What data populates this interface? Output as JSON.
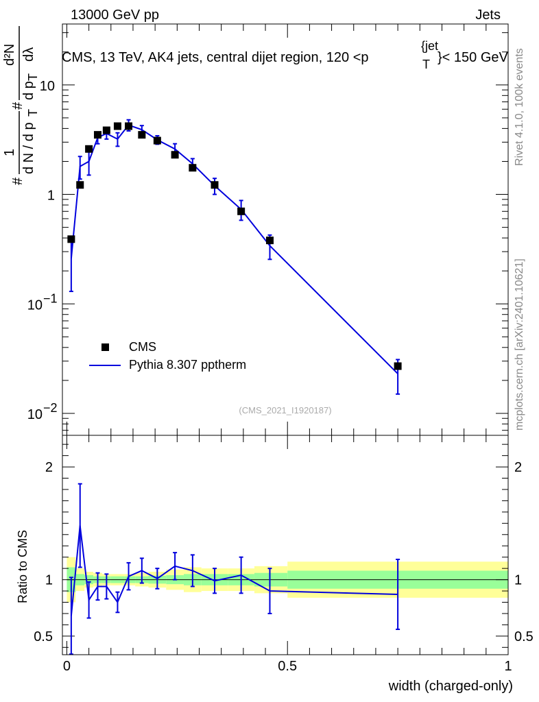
{
  "header": {
    "left": "13000 GeV pp",
    "right": "Jets",
    "title_prefix": "CMS, 13 TeV, AK4 jets, central dijet region, 120 <p",
    "title_sup": "{jet",
    "title_sub": "T",
    "title_suffix": "}< 150 GeV"
  },
  "side_labels": {
    "rivet": "Rivet 4.1.0,  100k events",
    "mcplots": "mcplots.cern.ch [arXiv:2401.10621]"
  },
  "analysis_ref": "(CMS_2021_I1920187)",
  "ylabel_top": {
    "hash1": "#",
    "one": "1",
    "dN_dpT": "d N / d p",
    "T": "T",
    "hash2": "#",
    "d2N": "d²N",
    "dpT_dl": "d p",
    "T2": "T",
    "dl": "dλ"
  },
  "ylabel_bottom": "Ratio to CMS",
  "xlabel": "width (charged-only)",
  "legend": {
    "data": "CMS",
    "mc": "Pythia 8.307 pptherm"
  },
  "colors": {
    "data": "#000000",
    "mc": "#0000dd",
    "band_stat": "#99ff99",
    "band_total": "#ffff99"
  },
  "chart_data": {
    "type": "scatter",
    "x_ticks": [
      {
        "v": 0,
        "label": "0"
      },
      {
        "v": 0.5,
        "label": "0.5"
      },
      {
        "v": 1,
        "label": "1"
      }
    ],
    "xlim": [
      -0.01,
      1.0
    ],
    "top": {
      "yscale": "log",
      "ylim": [
        0.0063,
        36
      ],
      "y_ticks": [
        {
          "v": 10,
          "base": "10",
          "exp": ""
        },
        {
          "v": 1,
          "base": "1",
          "exp": ""
        },
        {
          "v": 0.1,
          "base": "10",
          "exp": "−1"
        },
        {
          "v": 0.01,
          "base": "10",
          "exp": "−2"
        }
      ],
      "cms": {
        "x": [
          0.01,
          0.03,
          0.05,
          0.07,
          0.09,
          0.115,
          0.14,
          0.17,
          0.205,
          0.245,
          0.285,
          0.335,
          0.395,
          0.46,
          0.75
        ],
        "y": [
          0.39,
          1.22,
          2.6,
          3.5,
          3.85,
          4.2,
          4.2,
          3.5,
          3.1,
          2.3,
          1.75,
          1.22,
          0.7,
          0.38,
          0.027
        ]
      },
      "pythia": {
        "x": [
          0.01,
          0.03,
          0.05,
          0.07,
          0.09,
          0.115,
          0.14,
          0.17,
          0.205,
          0.245,
          0.285,
          0.335,
          0.395,
          0.46,
          0.75
        ],
        "y": [
          0.26,
          1.8,
          2.0,
          3.3,
          3.6,
          3.2,
          4.3,
          3.9,
          3.15,
          2.6,
          1.9,
          1.2,
          0.73,
          0.34,
          0.023
        ],
        "err": [
          0.13,
          0.42,
          0.5,
          0.4,
          0.4,
          0.45,
          0.5,
          0.35,
          0.28,
          0.3,
          0.22,
          0.2,
          0.15,
          0.085,
          0.008
        ]
      }
    },
    "bottom": {
      "yscale": "linear",
      "ylim": [
        0.335,
        2.28
      ],
      "y_ticks": [
        {
          "v": 2,
          "label": "2"
        },
        {
          "v": 1,
          "label": "1"
        },
        {
          "v": 0.5,
          "label": "0.5"
        }
      ],
      "bands": {
        "x_edges": [
          0.0,
          0.02,
          0.04,
          0.06,
          0.08,
          0.1,
          0.13,
          0.155,
          0.185,
          0.225,
          0.265,
          0.305,
          0.365,
          0.425,
          0.5,
          1.0
        ],
        "stat": [
          0.11,
          0.05,
          0.04,
          0.03,
          0.03,
          0.03,
          0.03,
          0.03,
          0.035,
          0.04,
          0.05,
          0.05,
          0.05,
          0.06,
          0.08
        ],
        "total": [
          0.2,
          0.1,
          0.07,
          0.06,
          0.05,
          0.05,
          0.05,
          0.06,
          0.07,
          0.09,
          0.11,
          0.1,
          0.1,
          0.12,
          0.16
        ]
      },
      "ratio": {
        "x": [
          0.01,
          0.03,
          0.05,
          0.07,
          0.09,
          0.115,
          0.14,
          0.17,
          0.205,
          0.245,
          0.285,
          0.335,
          0.395,
          0.46,
          0.75
        ],
        "y": [
          0.68,
          1.48,
          0.82,
          0.94,
          0.94,
          0.8,
          1.03,
          1.08,
          1.01,
          1.12,
          1.08,
          0.99,
          1.04,
          0.9,
          0.87
        ],
        "err": [
          0.34,
          0.37,
          0.16,
          0.12,
          0.11,
          0.09,
          0.12,
          0.11,
          0.09,
          0.12,
          0.14,
          0.11,
          0.16,
          0.2,
          0.31
        ]
      }
    }
  }
}
